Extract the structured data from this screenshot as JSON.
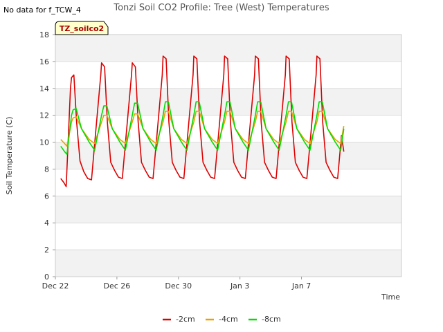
{
  "chart_data": {
    "type": "line",
    "title": "Tonzi Soil CO2 Profile: Tree (West) Temperatures",
    "xlabel": "Time",
    "ylabel": "Soil Temperature (C)",
    "no_data_note": "No data for f_TCW_4",
    "badge": "TZ_soilco2",
    "ylim": [
      0,
      18
    ],
    "yticks": [
      0,
      2,
      4,
      6,
      8,
      10,
      12,
      14,
      16,
      18
    ],
    "xlim": [
      0,
      22.5
    ],
    "xticks": [
      {
        "value": 0,
        "label": "Dec 22"
      },
      {
        "value": 4,
        "label": "Dec 26"
      },
      {
        "value": 8,
        "label": "Dec 30"
      },
      {
        "value": 12,
        "label": "Jan 3"
      },
      {
        "value": 16,
        "label": "Jan 7"
      }
    ],
    "grid": true,
    "legend_position": "bottom",
    "series": [
      {
        "name": "-2cm",
        "color": "#dd0000",
        "x": [
          0.35,
          0.55,
          0.7,
          0.98,
          1.05,
          1.2,
          1.38,
          1.6,
          1.85,
          2.1,
          2.35,
          2.6,
          2.95,
          3.0,
          3.2,
          3.38,
          3.6,
          3.85,
          4.1,
          4.35,
          4.6,
          4.95,
          5.0,
          5.2,
          5.38,
          5.6,
          5.85,
          6.1,
          6.35,
          6.6,
          6.95,
          7.0,
          7.2,
          7.38,
          7.6,
          7.85,
          8.1,
          8.35,
          8.6,
          8.95,
          9.0,
          9.2,
          9.38,
          9.6,
          9.85,
          10.1,
          10.35,
          10.6,
          10.95,
          11.0,
          11.2,
          11.38,
          11.6,
          11.85,
          12.1,
          12.35,
          12.6,
          12.95,
          13.0,
          13.2,
          13.38,
          13.6,
          13.85,
          14.1,
          14.35,
          14.6,
          14.95,
          15.0,
          15.2,
          15.38,
          15.6,
          15.85,
          16.1,
          16.35,
          16.6,
          16.95,
          17.0,
          17.2,
          17.38,
          17.6,
          17.85,
          18.1,
          18.35,
          18.6,
          18.75
        ],
        "y": [
          7.3,
          7.0,
          6.7,
          14.0,
          14.8,
          15.0,
          11.5,
          8.6,
          7.8,
          7.3,
          7.2,
          10.5,
          15.0,
          15.9,
          15.6,
          11.5,
          8.5,
          7.9,
          7.4,
          7.3,
          10.5,
          15.0,
          15.9,
          15.6,
          11.5,
          8.5,
          7.9,
          7.4,
          7.3,
          10.5,
          15.0,
          16.4,
          16.2,
          11.5,
          8.5,
          7.9,
          7.4,
          7.3,
          10.5,
          15.0,
          16.4,
          16.2,
          11.5,
          8.5,
          7.9,
          7.4,
          7.3,
          10.5,
          15.0,
          16.4,
          16.2,
          11.5,
          8.5,
          7.9,
          7.4,
          7.3,
          10.5,
          15.0,
          16.4,
          16.2,
          11.5,
          8.5,
          7.9,
          7.4,
          7.3,
          10.5,
          15.0,
          16.4,
          16.2,
          11.5,
          8.5,
          7.9,
          7.4,
          7.3,
          10.5,
          15.0,
          16.4,
          16.2,
          11.5,
          8.5,
          7.9,
          7.4,
          7.3,
          10.5,
          9.3
        ]
      },
      {
        "name": "-4cm",
        "color": "#e8a200",
        "x": [
          0.35,
          0.6,
          0.75,
          1.05,
          1.15,
          1.35,
          1.7,
          2.2,
          2.55,
          3.0,
          3.15,
          3.35,
          3.7,
          4.2,
          4.55,
          5.0,
          5.15,
          5.35,
          5.7,
          6.2,
          6.55,
          7.0,
          7.15,
          7.35,
          7.7,
          8.2,
          8.55,
          9.0,
          9.15,
          9.35,
          9.7,
          10.2,
          10.55,
          11.0,
          11.15,
          11.35,
          11.7,
          12.2,
          12.55,
          13.0,
          13.15,
          13.35,
          13.7,
          14.2,
          14.55,
          15.0,
          15.15,
          15.35,
          15.7,
          16.2,
          16.55,
          17.0,
          17.15,
          17.35,
          17.7,
          18.2,
          18.55,
          18.75
        ],
        "y": [
          10.2,
          9.9,
          9.7,
          11.5,
          11.8,
          11.9,
          11.0,
          10.2,
          9.9,
          11.5,
          12.0,
          12.0,
          11.0,
          10.2,
          9.9,
          11.5,
          12.1,
          12.1,
          11.0,
          10.2,
          9.9,
          11.5,
          12.3,
          12.3,
          11.0,
          10.2,
          9.9,
          11.5,
          12.3,
          12.3,
          11.0,
          10.2,
          9.9,
          11.5,
          12.3,
          12.3,
          11.0,
          10.2,
          9.9,
          11.5,
          12.3,
          12.3,
          11.0,
          10.2,
          9.9,
          11.5,
          12.3,
          12.3,
          11.0,
          10.2,
          9.9,
          11.5,
          12.3,
          12.3,
          11.0,
          10.2,
          9.9,
          11.2
        ]
      },
      {
        "name": "-8cm",
        "color": "#00dd00",
        "x": [
          0.35,
          0.6,
          0.75,
          1.05,
          1.15,
          1.35,
          1.7,
          2.2,
          2.55,
          3.0,
          3.15,
          3.35,
          3.7,
          4.2,
          4.55,
          5.0,
          5.15,
          5.35,
          5.7,
          6.2,
          6.55,
          7.0,
          7.15,
          7.35,
          7.7,
          8.2,
          8.55,
          9.0,
          9.15,
          9.35,
          9.7,
          10.2,
          10.55,
          11.0,
          11.15,
          11.35,
          11.7,
          12.2,
          12.55,
          13.0,
          13.15,
          13.35,
          13.7,
          14.2,
          14.55,
          15.0,
          15.15,
          15.35,
          15.7,
          16.2,
          16.55,
          17.0,
          17.15,
          17.35,
          17.7,
          18.2,
          18.55,
          18.75
        ],
        "y": [
          9.7,
          9.3,
          9.1,
          12.0,
          12.4,
          12.5,
          11.0,
          10.0,
          9.4,
          12.0,
          12.7,
          12.7,
          11.0,
          10.0,
          9.4,
          12.0,
          12.9,
          12.9,
          11.0,
          10.0,
          9.4,
          12.0,
          13.0,
          13.0,
          11.0,
          10.0,
          9.4,
          12.0,
          13.0,
          13.0,
          11.0,
          10.0,
          9.4,
          12.0,
          13.0,
          13.0,
          11.0,
          10.0,
          9.4,
          12.0,
          13.0,
          13.0,
          11.0,
          10.0,
          9.4,
          12.0,
          13.0,
          13.0,
          11.0,
          10.0,
          9.4,
          12.0,
          13.0,
          13.0,
          11.0,
          10.0,
          9.4,
          11.0
        ]
      }
    ]
  }
}
